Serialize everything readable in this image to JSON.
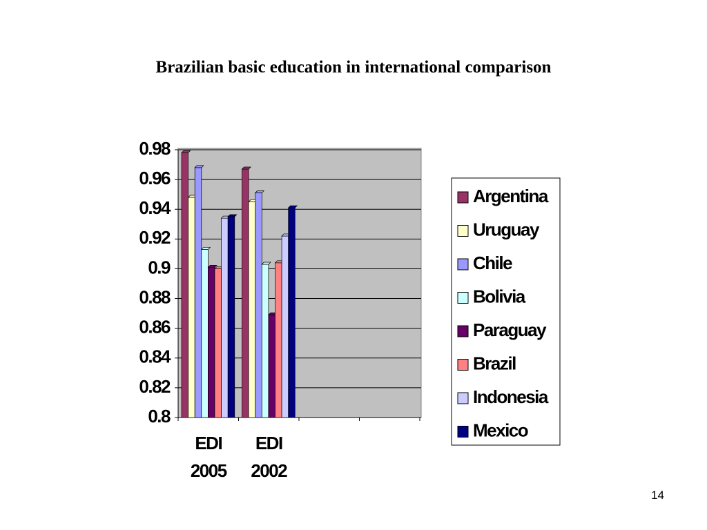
{
  "chart_data": {
    "type": "bar",
    "title": "Brazilian basic education in international comparison",
    "page_number": "14",
    "categories": [
      "EDI 2005",
      "EDI 2002",
      null,
      null
    ],
    "series": [
      {
        "name": "Argentina",
        "color": "#993366",
        "values": [
          0.978,
          0.967,
          null,
          null
        ]
      },
      {
        "name": "Uruguay",
        "color": "#FFFFCC",
        "values": [
          0.948,
          0.945,
          null,
          null
        ]
      },
      {
        "name": "Chile",
        "color": "#9999FF",
        "values": [
          0.968,
          0.951,
          null,
          null
        ]
      },
      {
        "name": "Bolivia",
        "color": "#CCFFFF",
        "values": [
          0.913,
          0.903,
          null,
          null
        ]
      },
      {
        "name": "Paraguay",
        "color": "#660066",
        "values": [
          0.901,
          0.869,
          null,
          null
        ]
      },
      {
        "name": "Brazil",
        "color": "#FF8080",
        "values": [
          0.9,
          0.904,
          null,
          null
        ]
      },
      {
        "name": "Indonesia",
        "color": "#CCCCFF",
        "values": [
          0.934,
          0.922,
          null,
          null
        ]
      },
      {
        "name": "Mexico",
        "color": "#000080",
        "values": [
          0.935,
          0.941,
          null,
          null
        ]
      }
    ],
    "ylim": [
      0.8,
      0.98
    ],
    "yticks": [
      0.8,
      0.82,
      0.84,
      0.86,
      0.88,
      0.9,
      0.92,
      0.94,
      0.96,
      0.98
    ],
    "grid": true,
    "legend": "right"
  }
}
